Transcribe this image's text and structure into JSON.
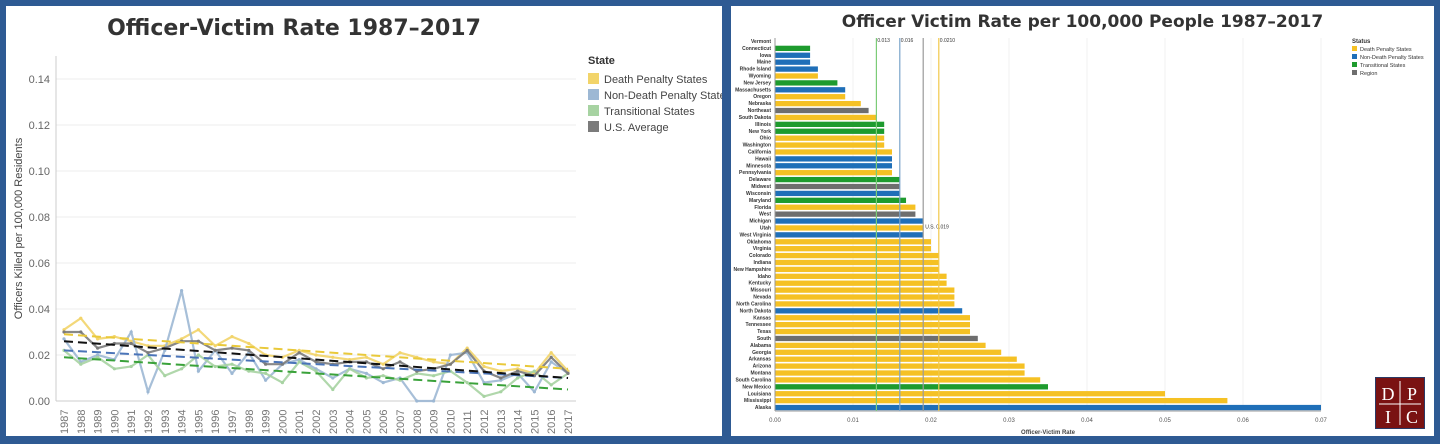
{
  "colors": {
    "death": "#f2d46a",
    "non_death": "#9db8d4",
    "transitional": "#a7d3a2",
    "us": "#7b7b7b",
    "death_bar": "#f5c124",
    "non_death_bar": "#1f6fb8",
    "transitional_bar": "#1e9b2e",
    "region_bar": "#6e6e6e",
    "frame": "#2e5a93"
  },
  "left": {
    "title": "Officer-Victim Rate 1987–2017",
    "legend_title": "State",
    "legend": [
      "Death Penalty States",
      "Non-Death Penalty States",
      "Transitional States",
      "U.S. Average"
    ]
  },
  "right": {
    "title": "Officer Victim Rate per 100,000 People 1987–2017",
    "legend_title": "Status",
    "legend": [
      "Death Penalty States",
      "Non-Death Penalty States",
      "Transitional States",
      "Region"
    ],
    "logo": "DPIC"
  },
  "chart_data": [
    {
      "type": "line",
      "title": "Officer-Victim Rate 1987–2017",
      "ylabel": "Officers Killed per 100,000 Residents",
      "ylim": [
        0,
        0.15
      ],
      "yticks": [
        "0.00",
        "0.02",
        "0.04",
        "0.06",
        "0.08",
        "0.10",
        "0.12",
        "0.14"
      ],
      "x": [
        1987,
        1988,
        1989,
        1990,
        1991,
        1992,
        1993,
        1994,
        1995,
        1996,
        1997,
        1998,
        1999,
        2000,
        2001,
        2002,
        2003,
        2004,
        2005,
        2006,
        2007,
        2008,
        2009,
        2010,
        2011,
        2012,
        2013,
        2014,
        2015,
        2016,
        2017
      ],
      "series": [
        {
          "name": "Death Penalty States",
          "key": "death",
          "values": [
            0.031,
            0.036,
            0.027,
            0.028,
            0.026,
            0.024,
            0.024,
            0.027,
            0.031,
            0.024,
            0.028,
            0.025,
            0.02,
            0.019,
            0.022,
            0.02,
            0.019,
            0.018,
            0.019,
            0.016,
            0.021,
            0.019,
            0.017,
            0.016,
            0.023,
            0.015,
            0.013,
            0.014,
            0.012,
            0.021,
            0.013
          ]
        },
        {
          "name": "Non-Death Penalty States",
          "key": "non_death",
          "values": [
            0.027,
            0.017,
            0.02,
            0.018,
            0.03,
            0.004,
            0.022,
            0.048,
            0.013,
            0.022,
            0.012,
            0.021,
            0.009,
            0.016,
            0.018,
            0.014,
            0.01,
            0.014,
            0.012,
            0.008,
            0.01,
            0.0,
            0.0,
            0.02,
            0.021,
            0.008,
            0.009,
            0.012,
            0.004,
            0.017,
            0.012
          ]
        },
        {
          "name": "Transitional States",
          "key": "transitional",
          "values": [
            0.022,
            0.016,
            0.019,
            0.014,
            0.015,
            0.02,
            0.011,
            0.014,
            0.02,
            0.015,
            0.016,
            0.013,
            0.012,
            0.008,
            0.017,
            0.013,
            0.005,
            0.014,
            0.01,
            0.011,
            0.009,
            0.012,
            0.011,
            0.013,
            0.008,
            0.002,
            0.004,
            0.01,
            0.013,
            0.007,
            0.012
          ]
        },
        {
          "name": "U.S. Average",
          "key": "us",
          "values": [
            0.03,
            0.03,
            0.023,
            0.025,
            0.025,
            0.021,
            0.023,
            0.026,
            0.026,
            0.022,
            0.023,
            0.022,
            0.016,
            0.016,
            0.021,
            0.017,
            0.016,
            0.017,
            0.017,
            0.014,
            0.017,
            0.013,
            0.014,
            0.016,
            0.022,
            0.013,
            0.01,
            0.013,
            0.011,
            0.019,
            0.012
          ]
        }
      ],
      "trend": [
        {
          "key": "death",
          "start": 0.029,
          "end": 0.014
        },
        {
          "key": "non_death",
          "start": 0.022,
          "end": 0.01
        },
        {
          "key": "transitional",
          "start": 0.019,
          "end": 0.005
        },
        {
          "key": "us",
          "start": 0.026,
          "end": 0.01
        }
      ]
    },
    {
      "type": "bar",
      "title": "Officer Victim Rate per 100,000 People 1987–2017",
      "xlabel": "Officer-Victim Rate",
      "xlim": [
        0,
        0.07
      ],
      "xticks": [
        "0.00",
        "0.01",
        "0.02",
        "0.03",
        "0.04",
        "0.05",
        "0.06",
        "0.07"
      ],
      "reference_lines": [
        {
          "label": "0.013",
          "value": 0.013,
          "key": "transitional"
        },
        {
          "label": "0.016",
          "value": 0.016,
          "key": "non_death"
        },
        {
          "label": "U.S. 0.019",
          "value": 0.019,
          "key": "us"
        },
        {
          "label": "0.0210",
          "value": 0.021,
          "key": "death"
        }
      ],
      "categories": [
        "Vermont",
        "Connecticut",
        "Iowa",
        "Maine",
        "Rhode Island",
        "Wyoming",
        "New Jersey",
        "Massachusetts",
        "Oregon",
        "Nebraska",
        "Northeast",
        "South Dakota",
        "Illinois",
        "New York",
        "Ohio",
        "Washington",
        "California",
        "Hawaii",
        "Minnesota",
        "Pennsylvania",
        "Delaware",
        "Midwest",
        "Wisconsin",
        "Maryland",
        "Florida",
        "West",
        "Michigan",
        "Utah",
        "West Virginia",
        "Oklahoma",
        "Virginia",
        "Colorado",
        "Indiana",
        "New Hampshire",
        "Idaho",
        "Kentucky",
        "Missouri",
        "Nevada",
        "North Carolina",
        "North Dakota",
        "Kansas",
        "Tennessee",
        "Texas",
        "South",
        "Alabama",
        "Georgia",
        "Arkansas",
        "Arizona",
        "Montana",
        "South Carolina",
        "New Mexico",
        "Louisiana",
        "Mississippi",
        "Alaska"
      ],
      "values": [
        0.0,
        0.0045,
        0.0045,
        0.0045,
        0.0055,
        0.0055,
        0.008,
        0.009,
        0.009,
        0.011,
        0.012,
        0.013,
        0.014,
        0.014,
        0.014,
        0.014,
        0.015,
        0.015,
        0.015,
        0.015,
        0.016,
        0.016,
        0.016,
        0.0168,
        0.018,
        0.018,
        0.019,
        0.019,
        0.019,
        0.02,
        0.02,
        0.021,
        0.021,
        0.021,
        0.022,
        0.022,
        0.023,
        0.023,
        0.023,
        0.024,
        0.025,
        0.025,
        0.025,
        0.026,
        0.027,
        0.029,
        0.031,
        0.032,
        0.032,
        0.034,
        0.035,
        0.05,
        0.058,
        0.07
      ],
      "status": [
        "death",
        "transitional",
        "non_death",
        "non_death",
        "non_death",
        "death",
        "transitional",
        "non_death",
        "death",
        "death",
        "region",
        "death",
        "transitional",
        "transitional",
        "death",
        "death",
        "death",
        "non_death",
        "non_death",
        "death",
        "transitional",
        "region",
        "non_death",
        "transitional",
        "death",
        "region",
        "non_death",
        "death",
        "non_death",
        "death",
        "death",
        "death",
        "death",
        "death",
        "death",
        "death",
        "death",
        "death",
        "death",
        "non_death",
        "death",
        "death",
        "death",
        "region",
        "death",
        "death",
        "death",
        "death",
        "death",
        "death",
        "transitional",
        "death",
        "death",
        "non_death"
      ]
    }
  ]
}
